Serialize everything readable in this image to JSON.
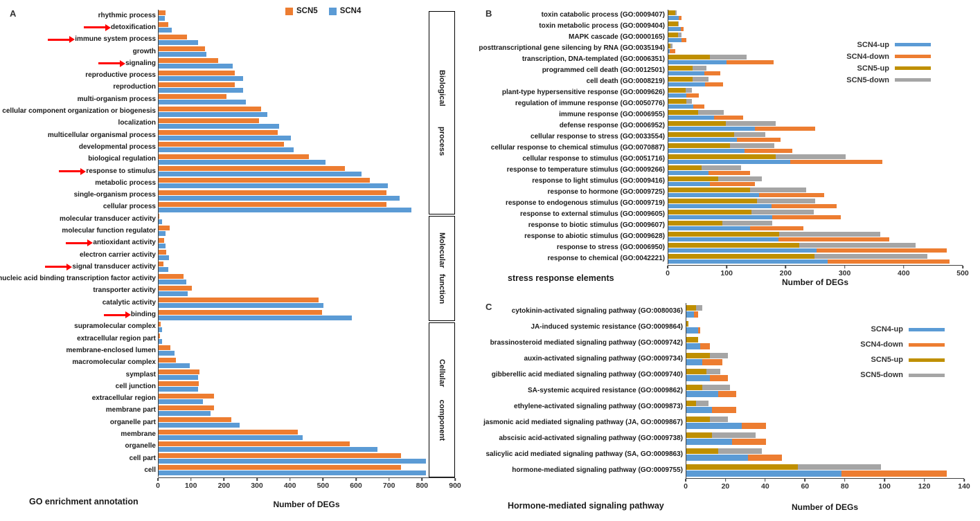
{
  "figure": {
    "panel_a_letter": "A",
    "panel_b_letter": "B",
    "panel_c_letter": "C"
  },
  "colors": {
    "scn5_orange": "#ED7D31",
    "scn4_blue": "#5B9BD5",
    "scn5_up_dark_yellow": "#BF8F00",
    "scn5_down_gray": "#A5A5A5",
    "arrow_red": "#FF0000",
    "axis": "#404040"
  },
  "chart_data": [
    {
      "id": "A",
      "type": "bar",
      "title": "GO enrichment annotation",
      "xlabel": "Number of DEGs",
      "xlim": [
        0,
        900
      ],
      "xticks": [
        0,
        100,
        200,
        300,
        400,
        500,
        600,
        700,
        800,
        900
      ],
      "legend_position": "top",
      "grid": false,
      "series": [
        {
          "name": "SCN5",
          "color": "#ED7D31"
        },
        {
          "name": "SCN4",
          "color": "#5B9BD5"
        }
      ],
      "groups": [
        {
          "name": "Biological process"
        },
        {
          "name": "Molecular function"
        },
        {
          "name": "Cellular component"
        }
      ],
      "categories": [
        {
          "label": "rhythmic process",
          "group": "Biological process",
          "arrow": false,
          "values": {
            "SCN5": 20,
            "SCN4": 18
          }
        },
        {
          "label": "detoxification",
          "group": "Biological process",
          "arrow": true,
          "values": {
            "SCN5": 30,
            "SCN4": 40
          }
        },
        {
          "label": "immune system process",
          "group": "Biological process",
          "arrow": true,
          "values": {
            "SCN5": 85,
            "SCN4": 120
          }
        },
        {
          "label": "growth",
          "group": "Biological process",
          "arrow": false,
          "values": {
            "SCN5": 140,
            "SCN4": 145
          }
        },
        {
          "label": "signaling",
          "group": "Biological process",
          "arrow": true,
          "values": {
            "SCN5": 180,
            "SCN4": 225
          }
        },
        {
          "label": "reproductive process",
          "group": "Biological process",
          "arrow": false,
          "values": {
            "SCN5": 230,
            "SCN4": 255
          }
        },
        {
          "label": "reproduction",
          "group": "Biological process",
          "arrow": false,
          "values": {
            "SCN5": 230,
            "SCN4": 255
          }
        },
        {
          "label": "multi-organism process",
          "group": "Biological process",
          "arrow": false,
          "values": {
            "SCN5": 205,
            "SCN4": 265
          }
        },
        {
          "label": "cellular component organization or biogenesis",
          "group": "Biological process",
          "arrow": false,
          "values": {
            "SCN5": 310,
            "SCN4": 330
          }
        },
        {
          "label": "localization",
          "group": "Biological process",
          "arrow": false,
          "values": {
            "SCN5": 305,
            "SCN4": 365
          }
        },
        {
          "label": "multicellular organismal process",
          "group": "Biological process",
          "arrow": false,
          "values": {
            "SCN5": 360,
            "SCN4": 400
          }
        },
        {
          "label": "developmental process",
          "group": "Biological process",
          "arrow": false,
          "values": {
            "SCN5": 380,
            "SCN4": 410
          }
        },
        {
          "label": "biological regulation",
          "group": "Biological process",
          "arrow": false,
          "values": {
            "SCN5": 455,
            "SCN4": 505
          }
        },
        {
          "label": "response to stimulus",
          "group": "Biological process",
          "arrow": true,
          "values": {
            "SCN5": 565,
            "SCN4": 615
          }
        },
        {
          "label": "metabolic process",
          "group": "Biological process",
          "arrow": false,
          "values": {
            "SCN5": 640,
            "SCN4": 695
          }
        },
        {
          "label": "single-organism process",
          "group": "Biological process",
          "arrow": false,
          "values": {
            "SCN5": 690,
            "SCN4": 730
          }
        },
        {
          "label": "cellular process",
          "group": "Biological process",
          "arrow": false,
          "values": {
            "SCN5": 690,
            "SCN4": 765
          }
        },
        {
          "label": "molecular transducer activity",
          "group": "Molecular function",
          "arrow": false,
          "values": {
            "SCN5": 3,
            "SCN4": 10
          }
        },
        {
          "label": "molecular function regulator",
          "group": "Molecular function",
          "arrow": false,
          "values": {
            "SCN5": 33,
            "SCN4": 20
          }
        },
        {
          "label": "antioxidant activity",
          "group": "Molecular function",
          "arrow": true,
          "values": {
            "SCN5": 17,
            "SCN4": 22
          }
        },
        {
          "label": "electron carrier activity",
          "group": "Molecular function",
          "arrow": false,
          "values": {
            "SCN5": 23,
            "SCN4": 31
          }
        },
        {
          "label": "signal transducer activity",
          "group": "Molecular function",
          "arrow": true,
          "values": {
            "SCN5": 15,
            "SCN4": 30
          }
        },
        {
          "label": "nucleic acid binding transcription factor activity",
          "group": "Molecular function",
          "arrow": true,
          "values": {
            "SCN5": 75,
            "SCN4": 83
          }
        },
        {
          "label": "transporter activity",
          "group": "Molecular function",
          "arrow": false,
          "values": {
            "SCN5": 100,
            "SCN4": 88
          }
        },
        {
          "label": "catalytic activity",
          "group": "Molecular function",
          "arrow": false,
          "values": {
            "SCN5": 485,
            "SCN4": 500
          }
        },
        {
          "label": "binding",
          "group": "Molecular function",
          "arrow": true,
          "values": {
            "SCN5": 495,
            "SCN4": 585
          }
        },
        {
          "label": "supramolecular complex",
          "group": "Cellular component",
          "arrow": false,
          "values": {
            "SCN5": 7,
            "SCN4": 11
          }
        },
        {
          "label": "extracellular region part",
          "group": "Cellular component",
          "arrow": false,
          "values": {
            "SCN5": 5,
            "SCN4": 10
          }
        },
        {
          "label": "membrane-enclosed lumen",
          "group": "Cellular component",
          "arrow": false,
          "values": {
            "SCN5": 36,
            "SCN4": 48
          }
        },
        {
          "label": "macromolecular complex",
          "group": "Cellular component",
          "arrow": false,
          "values": {
            "SCN5": 53,
            "SCN4": 95
          }
        },
        {
          "label": "symplast",
          "group": "Cellular component",
          "arrow": false,
          "values": {
            "SCN5": 123,
            "SCN4": 120
          }
        },
        {
          "label": "cell junction",
          "group": "Cellular component",
          "arrow": false,
          "values": {
            "SCN5": 122,
            "SCN4": 119
          }
        },
        {
          "label": "extracellular region",
          "group": "Cellular component",
          "arrow": false,
          "values": {
            "SCN5": 168,
            "SCN4": 135
          }
        },
        {
          "label": "membrane part",
          "group": "Cellular component",
          "arrow": false,
          "values": {
            "SCN5": 168,
            "SCN4": 157
          }
        },
        {
          "label": "organelle part",
          "group": "Cellular component",
          "arrow": false,
          "values": {
            "SCN5": 220,
            "SCN4": 246
          }
        },
        {
          "label": "membrane",
          "group": "Cellular component",
          "arrow": false,
          "values": {
            "SCN5": 422,
            "SCN4": 437
          }
        },
        {
          "label": "organelle",
          "group": "Cellular component",
          "arrow": false,
          "values": {
            "SCN5": 578,
            "SCN4": 663
          }
        },
        {
          "label": "cell part",
          "group": "Cellular component",
          "arrow": false,
          "values": {
            "SCN5": 735,
            "SCN4": 810
          }
        },
        {
          "label": "cell",
          "group": "Cellular component",
          "arrow": false,
          "values": {
            "SCN5": 735,
            "SCN4": 810
          }
        }
      ]
    },
    {
      "id": "B",
      "type": "stacked-bar",
      "title": "stress response elements",
      "xlabel": "Number of DEGs",
      "xlim": [
        0,
        500
      ],
      "xticks": [
        0,
        100,
        200,
        300,
        400,
        500
      ],
      "grid": false,
      "legend_position": "right",
      "series": [
        {
          "name": "SCN4-up",
          "color": "#5B9BD5"
        },
        {
          "name": "SCN4-down",
          "color": "#ED7D31"
        },
        {
          "name": "SCN5-up",
          "color": "#BF8F00"
        },
        {
          "name": "SCN5-down",
          "color": "#A5A5A5"
        }
      ],
      "stack_rows": [
        [
          "SCN5-up",
          "SCN5-down"
        ],
        [
          "SCN4-up",
          "SCN4-down"
        ]
      ],
      "categories": [
        {
          "label": "toxin catabolic process (GO:0009407)",
          "values": {
            "SCN4-up": 18,
            "SCN4-down": 4,
            "SCN5-up": 12,
            "SCN5-down": 2
          }
        },
        {
          "label": "toxin metabolic process (GO:0009404)",
          "values": {
            "SCN4-up": 21,
            "SCN4-down": 5,
            "SCN5-up": 16,
            "SCN5-down": 2
          }
        },
        {
          "label": "MAPK cascade (GO:0000165)",
          "values": {
            "SCN4-up": 22,
            "SCN4-down": 8,
            "SCN5-up": 16,
            "SCN5-down": 6
          }
        },
        {
          "label": "posttranscriptional gene silencing by RNA (GO:0035194)",
          "values": {
            "SCN4-up": 2,
            "SCN4-down": 10,
            "SCN5-up": 3,
            "SCN5-down": 4
          }
        },
        {
          "label": "transcription, DNA-templated (GO:0006351)",
          "values": {
            "SCN4-up": 99,
            "SCN4-down": 79,
            "SCN5-up": 71,
            "SCN5-down": 62
          }
        },
        {
          "label": "programmed cell death (GO:0012501)",
          "values": {
            "SCN4-up": 61,
            "SCN4-down": 27,
            "SCN5-up": 41,
            "SCN5-down": 23
          }
        },
        {
          "label": "cell death (GO:0008219)",
          "values": {
            "SCN4-up": 62,
            "SCN4-down": 31,
            "SCN5-up": 41,
            "SCN5-down": 27
          }
        },
        {
          "label": "plant-type hypersensitive response (GO:0009626)",
          "values": {
            "SCN4-up": 30,
            "SCN4-down": 22,
            "SCN5-up": 29,
            "SCN5-down": 11
          }
        },
        {
          "label": "regulation of immune response (GO:0050776)",
          "values": {
            "SCN4-up": 42,
            "SCN4-down": 19,
            "SCN5-up": 31,
            "SCN5-down": 9
          }
        },
        {
          "label": "immune response (GO:0006955)",
          "values": {
            "SCN4-up": 78,
            "SCN4-down": 49,
            "SCN5-up": 51,
            "SCN5-down": 43
          }
        },
        {
          "label": "defense response (GO:0006952)",
          "values": {
            "SCN4-up": 147,
            "SCN4-down": 102,
            "SCN5-up": 98,
            "SCN5-down": 84
          }
        },
        {
          "label": "cellular response to stress (GO:0033554)",
          "values": {
            "SCN4-up": 116,
            "SCN4-down": 74,
            "SCN5-up": 111,
            "SCN5-down": 53
          }
        },
        {
          "label": "cellular response to chemical stimulus (GO:0070887)",
          "values": {
            "SCN4-up": 129,
            "SCN4-down": 81,
            "SCN5-up": 104,
            "SCN5-down": 76
          }
        },
        {
          "label": "cellular response to stimulus (GO:0051716)",
          "values": {
            "SCN4-up": 206,
            "SCN4-down": 157,
            "SCN5-up": 182,
            "SCN5-down": 118
          }
        },
        {
          "label": "response to temperature stimulus (GO:0009266)",
          "values": {
            "SCN4-up": 68,
            "SCN4-down": 70,
            "SCN5-up": 56,
            "SCN5-down": 67
          }
        },
        {
          "label": "response to light stimulus (GO:0009416)",
          "values": {
            "SCN4-up": 70,
            "SCN4-down": 77,
            "SCN5-up": 84,
            "SCN5-down": 75
          }
        },
        {
          "label": "response to hormone (GO:0009725)",
          "values": {
            "SCN4-up": 154,
            "SCN4-down": 110,
            "SCN5-up": 138,
            "SCN5-down": 96
          }
        },
        {
          "label": "response to endogenous stimulus (GO:0009719)",
          "values": {
            "SCN4-up": 175,
            "SCN4-down": 110,
            "SCN5-up": 150,
            "SCN5-down": 99
          }
        },
        {
          "label": "response to external stimulus (GO:0009605)",
          "values": {
            "SCN4-up": 176,
            "SCN4-down": 116,
            "SCN5-up": 141,
            "SCN5-down": 105
          }
        },
        {
          "label": "response to biotic stimulus (GO:0009607)",
          "values": {
            "SCN4-up": 138,
            "SCN4-down": 91,
            "SCN5-up": 92,
            "SCN5-down": 84
          }
        },
        {
          "label": "response to abiotic stimulus (GO:0009628)",
          "values": {
            "SCN4-up": 187,
            "SCN4-down": 187,
            "SCN5-up": 188,
            "SCN5-down": 171
          }
        },
        {
          "label": "response to stress (GO:0006950)",
          "values": {
            "SCN4-up": 251,
            "SCN4-down": 221,
            "SCN5-up": 222,
            "SCN5-down": 197
          }
        },
        {
          "label": "response to chemical (GO:0042221)",
          "values": {
            "SCN4-up": 270,
            "SCN4-down": 206,
            "SCN5-up": 248,
            "SCN5-down": 191
          }
        }
      ]
    },
    {
      "id": "C",
      "type": "stacked-bar",
      "title": "Hormone-mediated signaling pathway",
      "xlabel": "Number of DEGs",
      "xlim": [
        0,
        140
      ],
      "xticks": [
        0,
        20,
        40,
        60,
        80,
        100,
        120,
        140
      ],
      "grid": false,
      "legend_position": "right",
      "series": [
        {
          "name": "SCN4-up",
          "color": "#5B9BD5"
        },
        {
          "name": "SCN4-down",
          "color": "#ED7D31"
        },
        {
          "name": "SCN5-up",
          "color": "#BF8F00"
        },
        {
          "name": "SCN5-down",
          "color": "#A5A5A5"
        }
      ],
      "stack_rows": [
        [
          "SCN5-up",
          "SCN5-down"
        ],
        [
          "SCN4-up",
          "SCN4-down"
        ]
      ],
      "categories": [
        {
          "label": "cytokinin-activated signaling pathway (GO:0080036)",
          "values": {
            "SCN4-up": 4,
            "SCN4-down": 2,
            "SCN5-up": 5,
            "SCN5-down": 3
          }
        },
        {
          "label": "JA-induced systemic resistance (GO:0009864)",
          "values": {
            "SCN4-up": 6,
            "SCN4-down": 1,
            "SCN5-up": 1,
            "SCN5-down": 0
          }
        },
        {
          "label": "brassinosteroid mediated signaling pathway (GO:0009742)",
          "values": {
            "SCN4-up": 7,
            "SCN4-down": 5,
            "SCN5-up": 6,
            "SCN5-down": 0
          }
        },
        {
          "label": "auxin-activated signaling pathway (GO:0009734)",
          "values": {
            "SCN4-up": 8,
            "SCN4-down": 10,
            "SCN5-up": 12,
            "SCN5-down": 9
          }
        },
        {
          "label": "gibberellic acid mediated signaling pathway (GO:0009740)",
          "values": {
            "SCN4-up": 12,
            "SCN4-down": 9,
            "SCN5-up": 10,
            "SCN5-down": 7
          }
        },
        {
          "label": "SA-systemic acquired resistance (GO:0009862)",
          "values": {
            "SCN4-up": 16,
            "SCN4-down": 9,
            "SCN5-up": 8,
            "SCN5-down": 14
          }
        },
        {
          "label": "ethylene-activated signaling pathway (GO:0009873)",
          "values": {
            "SCN4-up": 13,
            "SCN4-down": 12,
            "SCN5-up": 5,
            "SCN5-down": 6
          }
        },
        {
          "label": "jasmonic acid mediated signaling pathway (JA, GO:0009867)",
          "values": {
            "SCN4-up": 28,
            "SCN4-down": 12,
            "SCN5-up": 12,
            "SCN5-down": 9
          }
        },
        {
          "label": "abscisic acid-activated signaling pathway (GO:0009738)",
          "values": {
            "SCN4-up": 23,
            "SCN4-down": 17,
            "SCN5-up": 13,
            "SCN5-down": 22
          }
        },
        {
          "label": "salicylic acid mediated signaling pathway (SA, GO:0009863)",
          "values": {
            "SCN4-up": 31,
            "SCN4-down": 17,
            "SCN5-up": 16,
            "SCN5-down": 22
          }
        },
        {
          "label": "hormone-mediated signaling pathway (GO:0009755)",
          "values": {
            "SCN4-up": 78,
            "SCN4-down": 53,
            "SCN5-up": 56,
            "SCN5-down": 42
          }
        }
      ]
    }
  ]
}
